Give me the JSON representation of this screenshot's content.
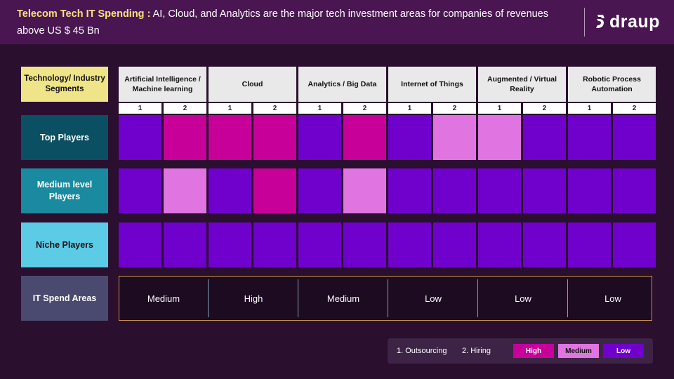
{
  "header": {
    "title_bold": "Telecom Tech IT Spending :",
    "title_rest": " AI, Cloud, and Analytics are the major tech investment areas for companies of revenues above US $ 45 Bn",
    "logo_text": "draup"
  },
  "colors": {
    "high": "#c8009a",
    "medium": "#e074e0",
    "low": "#7000cc"
  },
  "chart_data": {
    "type": "heatmap",
    "corner_label": "Technology/ Industry Segments",
    "columns": [
      {
        "segment": "Artificial Intelligence / Machine learning",
        "subs": [
          "1",
          "2"
        ]
      },
      {
        "segment": "Cloud",
        "subs": [
          "1",
          "2"
        ]
      },
      {
        "segment": "Analytics / Big Data",
        "subs": [
          "1",
          "2"
        ]
      },
      {
        "segment": "Internet of Things",
        "subs": [
          "1",
          "2"
        ]
      },
      {
        "segment": "Augmented / Virtual Reality",
        "subs": [
          "1",
          "2"
        ]
      },
      {
        "segment": "Robotic Process Automation",
        "subs": [
          "1",
          "2"
        ]
      }
    ],
    "rows": [
      {
        "label": "Top Players",
        "values": [
          "low",
          "high",
          "high",
          "high",
          "low",
          "high",
          "low",
          "medium",
          "medium",
          "low",
          "low",
          "low"
        ]
      },
      {
        "label": "Medium level Players",
        "values": [
          "low",
          "medium",
          "low",
          "high",
          "low",
          "medium",
          "low",
          "low",
          "low",
          "low",
          "low",
          "low"
        ]
      },
      {
        "label": "Niche Players",
        "values": [
          "low",
          "low",
          "low",
          "low",
          "low",
          "low",
          "low",
          "low",
          "low",
          "low",
          "low",
          "low"
        ]
      }
    ],
    "spend_label": "IT Spend Areas",
    "spend_values": [
      "Medium",
      "High",
      "Medium",
      "Low",
      "Low",
      "Low"
    ],
    "legend": {
      "item1": "1.  Outsourcing",
      "item2": "2.  Hiring",
      "high": "High",
      "medium": "Medium",
      "low": "Low"
    }
  }
}
